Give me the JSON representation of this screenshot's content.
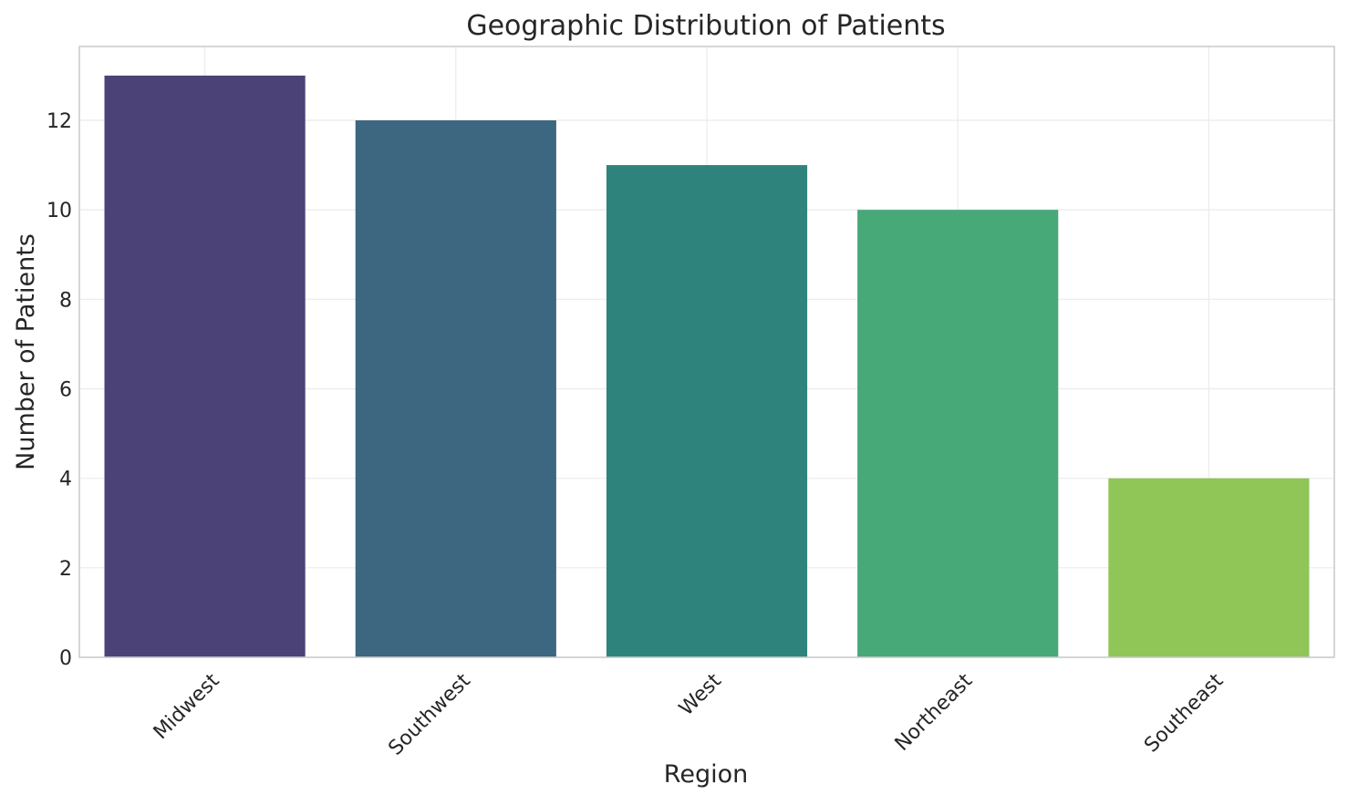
{
  "chart_data": {
    "type": "bar",
    "title": "Geographic Distribution of Patients",
    "xlabel": "Region",
    "ylabel": "Number of Patients",
    "categories": [
      "Midwest",
      "Southwest",
      "West",
      "Northeast",
      "Southeast"
    ],
    "values": [
      13,
      12,
      11,
      10,
      4
    ],
    "colors": [
      "#4b4277",
      "#3d6680",
      "#2e837d",
      "#47a878",
      "#90c557"
    ],
    "ylim": [
      0,
      13.65
    ],
    "yticks": [
      0,
      2,
      4,
      6,
      8,
      10,
      12
    ],
    "grid": true,
    "xtick_rotation": "45 degrees"
  }
}
